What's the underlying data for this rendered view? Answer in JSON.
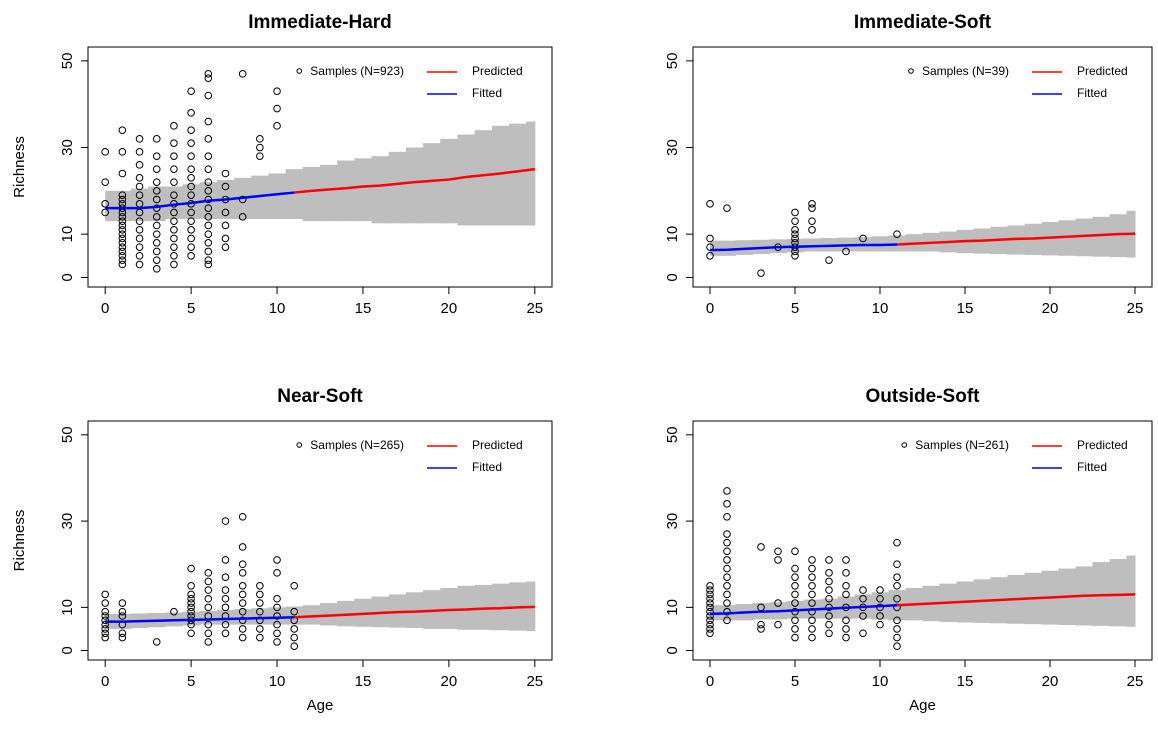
{
  "chart_data": [
    {
      "type": "scatter",
      "title": "Immediate-Hard",
      "ylabel": "Richness",
      "xlim": [
        -1,
        26
      ],
      "ylim": [
        -2.2,
        53.2
      ],
      "xticks": [
        0,
        5,
        10,
        15,
        20,
        25
      ],
      "yticks": [
        0,
        10,
        30,
        50
      ],
      "samples": {
        "name": "Samples (N=923)",
        "x": [
          0,
          1,
          2,
          3,
          4,
          5,
          6,
          7,
          8,
          9,
          10
        ],
        "y": [
          [
            15,
            17,
            22,
            29
          ],
          [
            3,
            4,
            5,
            6,
            7,
            8,
            9,
            10,
            11,
            12,
            13,
            14,
            15,
            16,
            17,
            18,
            19,
            24,
            29,
            34
          ],
          [
            3,
            5,
            7,
            9,
            11,
            13,
            15,
            17,
            19,
            21,
            23,
            26,
            29,
            32
          ],
          [
            2,
            4,
            6,
            8,
            10,
            12,
            14,
            16,
            18,
            20,
            22,
            25,
            28,
            32
          ],
          [
            3,
            5,
            7,
            9,
            11,
            13,
            15,
            17,
            19,
            22,
            25,
            28,
            31,
            35
          ],
          [
            5,
            7,
            9,
            11,
            13,
            15,
            17,
            19,
            21,
            23,
            25,
            28,
            31,
            34,
            38,
            43
          ],
          [
            3,
            4,
            6,
            8,
            10,
            12,
            14,
            16,
            18,
            20,
            22,
            25,
            28,
            32,
            36,
            42,
            46,
            47
          ],
          [
            7,
            9,
            12,
            15,
            18,
            21,
            24
          ],
          [
            14,
            18,
            47
          ],
          [
            28,
            30,
            32
          ],
          [
            35,
            39,
            43
          ]
        ]
      },
      "band": {
        "color": "#bebebe",
        "x": [
          0,
          1,
          2,
          3,
          4,
          5,
          6,
          7,
          8,
          9,
          10,
          11,
          12,
          13,
          14,
          15,
          16,
          17,
          18,
          19,
          20,
          21,
          22,
          23,
          24,
          25
        ],
        "lower": [
          13,
          13,
          13,
          13,
          13.5,
          13.5,
          13.5,
          13.5,
          13.5,
          13.5,
          13.5,
          13.5,
          13,
          13,
          13,
          13,
          12.5,
          12.5,
          12.5,
          12.5,
          12.5,
          12,
          12,
          12,
          12,
          12
        ],
        "upper": [
          20,
          20,
          20.5,
          21,
          21,
          21.5,
          22,
          22.5,
          23,
          23.5,
          24,
          25,
          25.5,
          26,
          27,
          27.5,
          28,
          29,
          30,
          31,
          32,
          33,
          34,
          35,
          35.5,
          36
        ]
      },
      "series": [
        {
          "name": "Predicted",
          "color": "#ff0000",
          "x": [
            11,
            12,
            13,
            14,
            15,
            16,
            17,
            18,
            19,
            20,
            21,
            22,
            23,
            24,
            25
          ],
          "values": [
            19.6,
            20,
            20.3,
            20.6,
            21,
            21.2,
            21.6,
            22,
            22.3,
            22.6,
            23.2,
            23.6,
            24,
            24.5,
            25
          ]
        },
        {
          "name": "Fitted",
          "color": "#0000ff",
          "x": [
            0,
            1,
            2,
            3,
            4,
            5,
            6,
            7,
            8,
            9,
            10,
            11
          ],
          "values": [
            16,
            16,
            16,
            16.3,
            16.8,
            17.2,
            17.7,
            18,
            18.4,
            18.8,
            19.2,
            19.6
          ]
        }
      ]
    },
    {
      "type": "scatter",
      "title": "Immediate-Soft",
      "xlim": [
        -1,
        26
      ],
      "ylim": [
        -2.2,
        53.2
      ],
      "xticks": [
        0,
        5,
        10,
        15,
        20,
        25
      ],
      "yticks": [
        0,
        10,
        30,
        50
      ],
      "samples": {
        "name": "Samples (N=39)",
        "x": [
          0,
          1,
          3,
          4,
          5,
          6,
          7,
          8,
          9,
          11
        ],
        "y": [
          [
            5,
            7,
            9,
            17
          ],
          [
            16
          ],
          [
            1
          ],
          [
            7
          ],
          [
            5,
            6,
            7,
            8,
            9,
            10,
            11,
            13,
            15
          ],
          [
            11,
            13,
            16,
            17
          ],
          [
            4
          ],
          [
            6
          ],
          [
            9
          ],
          [
            10
          ]
        ]
      },
      "band": {
        "color": "#bebebe",
        "x": [
          0,
          1,
          2,
          3,
          4,
          5,
          6,
          7,
          8,
          9,
          10,
          11,
          12,
          13,
          14,
          15,
          16,
          17,
          18,
          19,
          20,
          21,
          22,
          23,
          24,
          25
        ],
        "lower": [
          5,
          5,
          5.2,
          5.4,
          5.6,
          5.8,
          6,
          6,
          6,
          6,
          6,
          6,
          6,
          6,
          5.8,
          5.6,
          5.5,
          5.4,
          5.3,
          5.2,
          5.1,
          5,
          4.9,
          4.8,
          4.7,
          4.6
        ],
        "upper": [
          8.5,
          8.5,
          8.6,
          8.7,
          8.8,
          8.9,
          9,
          9.1,
          9.2,
          9.3,
          9.5,
          9.7,
          10,
          10.3,
          10.6,
          11,
          11.3,
          11.7,
          12,
          12.4,
          12.8,
          13.2,
          13.6,
          14,
          14.6,
          15.4
        ]
      },
      "series": [
        {
          "name": "Predicted",
          "color": "#ff0000",
          "x": [
            11,
            12,
            13,
            14,
            15,
            16,
            17,
            18,
            19,
            20,
            21,
            22,
            23,
            24,
            25
          ],
          "values": [
            7.6,
            7.8,
            8,
            8.2,
            8.4,
            8.5,
            8.7,
            8.9,
            9,
            9.2,
            9.4,
            9.6,
            9.8,
            10,
            10.1
          ]
        },
        {
          "name": "Fitted",
          "color": "#0000ff",
          "x": [
            0,
            1,
            2,
            3,
            4,
            5,
            6,
            7,
            8,
            9,
            10,
            11
          ],
          "values": [
            6.3,
            6.4,
            6.6,
            6.8,
            7,
            7.1,
            7.2,
            7.3,
            7.4,
            7.5,
            7.5,
            7.6
          ]
        }
      ]
    },
    {
      "type": "scatter",
      "title": "Near-Soft",
      "ylabel": "Richness",
      "xlabel": "Age",
      "xlim": [
        -1,
        26
      ],
      "ylim": [
        -2.2,
        53.2
      ],
      "xticks": [
        0,
        5,
        10,
        15,
        20,
        25
      ],
      "yticks": [
        0,
        10,
        30,
        50
      ],
      "samples": {
        "name": "Samples (N=265)",
        "x": [
          0,
          1,
          3,
          4,
          5,
          6,
          7,
          8,
          9,
          10,
          11
        ],
        "y": [
          [
            3,
            4,
            5,
            6,
            7,
            8,
            9,
            11,
            13
          ],
          [
            3,
            4,
            6,
            8,
            9,
            11
          ],
          [
            2
          ],
          [
            9
          ],
          [
            4,
            6,
            7,
            8,
            9,
            10,
            11,
            12,
            13,
            15,
            19
          ],
          [
            2,
            4,
            6,
            8,
            10,
            12,
            14,
            16,
            18
          ],
          [
            4,
            6,
            8,
            10,
            12,
            14,
            17,
            21,
            30
          ],
          [
            3,
            5,
            7,
            9,
            11,
            13,
            15,
            18,
            20,
            24,
            31
          ],
          [
            3,
            5,
            7,
            9,
            11,
            13,
            15
          ],
          [
            2,
            4,
            6,
            8,
            10,
            12,
            18,
            21
          ],
          [
            1,
            3,
            5,
            7,
            9,
            15
          ]
        ]
      },
      "band": {
        "color": "#bebebe",
        "x": [
          0,
          1,
          2,
          3,
          4,
          5,
          6,
          7,
          8,
          9,
          10,
          11,
          12,
          13,
          14,
          15,
          16,
          17,
          18,
          19,
          20,
          21,
          22,
          23,
          24,
          25
        ],
        "lower": [
          5,
          5,
          5.2,
          5.4,
          5.6,
          5.8,
          6,
          6,
          6,
          6,
          6,
          6,
          6,
          5.8,
          5.6,
          5.5,
          5.4,
          5.3,
          5.2,
          5,
          5,
          4.8,
          4.8,
          4.7,
          4.6,
          4.5
        ],
        "upper": [
          8.5,
          8.5,
          8.6,
          8.7,
          8.8,
          9,
          9.2,
          9.4,
          9.6,
          9.8,
          10,
          10.2,
          10.5,
          11,
          11.5,
          12,
          12.5,
          13,
          13.5,
          14,
          14.5,
          15,
          15.2,
          15.5,
          15.8,
          16
        ]
      },
      "series": [
        {
          "name": "Predicted",
          "color": "#ff0000",
          "x": [
            11,
            12,
            13,
            14,
            15,
            16,
            17,
            18,
            19,
            20,
            21,
            22,
            23,
            24,
            25
          ],
          "values": [
            7.7,
            7.9,
            8.1,
            8.3,
            8.5,
            8.7,
            8.9,
            9,
            9.2,
            9.4,
            9.5,
            9.7,
            9.8,
            10,
            10.1
          ]
        },
        {
          "name": "Fitted",
          "color": "#0000ff",
          "x": [
            0,
            1,
            2,
            3,
            4,
            5,
            6,
            7,
            8,
            9,
            10,
            11
          ],
          "values": [
            6.7,
            6.7,
            6.8,
            6.9,
            7,
            7.1,
            7.2,
            7.3,
            7.4,
            7.5,
            7.6,
            7.7
          ]
        }
      ]
    },
    {
      "type": "scatter",
      "title": "Outside-Soft",
      "xlabel": "Age",
      "xlim": [
        -1,
        26
      ],
      "ylim": [
        -2.2,
        53.2
      ],
      "xticks": [
        0,
        5,
        10,
        15,
        20,
        25
      ],
      "yticks": [
        0,
        10,
        30,
        50
      ],
      "samples": {
        "name": "Samples (N=261)",
        "x": [
          0,
          1,
          3,
          4,
          5,
          6,
          7,
          8,
          9,
          10,
          11
        ],
        "y": [
          [
            4,
            5,
            6,
            7,
            8,
            9,
            10,
            11,
            12,
            13,
            14,
            15
          ],
          [
            7,
            9,
            11,
            13,
            15,
            17,
            19,
            21,
            23,
            25,
            27,
            31,
            34,
            37
          ],
          [
            5,
            6,
            10,
            24
          ],
          [
            6,
            11,
            21,
            23
          ],
          [
            3,
            5,
            7,
            9,
            11,
            13,
            15,
            17,
            19,
            23
          ],
          [
            3,
            5,
            7,
            9,
            11,
            13,
            15,
            17,
            19,
            21
          ],
          [
            4,
            6,
            8,
            10,
            12,
            14,
            16,
            18,
            21
          ],
          [
            3,
            5,
            7,
            10,
            13,
            15,
            18,
            21
          ],
          [
            4,
            8,
            10,
            12,
            14
          ],
          [
            6,
            8,
            10,
            12,
            14
          ],
          [
            1,
            3,
            5,
            7,
            10,
            12,
            15,
            17,
            20,
            25
          ]
        ]
      },
      "band": {
        "color": "#bebebe",
        "x": [
          0,
          1,
          2,
          3,
          4,
          5,
          6,
          7,
          8,
          9,
          10,
          11,
          12,
          13,
          14,
          15,
          16,
          17,
          18,
          19,
          20,
          21,
          22,
          23,
          24,
          25
        ],
        "lower": [
          7,
          7,
          7,
          7.2,
          7.2,
          7.4,
          7.4,
          7.4,
          7.4,
          7.4,
          7.2,
          7,
          7,
          6.8,
          6.6,
          6.5,
          6.4,
          6.3,
          6.2,
          6.1,
          6,
          5.9,
          5.8,
          5.7,
          5.6,
          5.5
        ],
        "upper": [
          10.5,
          10.5,
          10.8,
          11,
          11.2,
          11.5,
          11.8,
          12,
          12.5,
          13,
          13.5,
          14,
          14.5,
          15,
          15.5,
          16,
          16.5,
          17,
          17.5,
          18,
          18.5,
          19,
          19.5,
          20.5,
          21.2,
          22
        ]
      },
      "series": [
        {
          "name": "Predicted",
          "color": "#ff0000",
          "x": [
            11,
            12,
            13,
            14,
            15,
            16,
            17,
            18,
            19,
            20,
            21,
            22,
            23,
            24,
            25
          ],
          "values": [
            10.5,
            10.7,
            10.9,
            11.1,
            11.3,
            11.5,
            11.7,
            11.9,
            12.1,
            12.3,
            12.5,
            12.7,
            12.8,
            12.9,
            13
          ]
        },
        {
          "name": "Fitted",
          "color": "#0000ff",
          "x": [
            0,
            1,
            2,
            3,
            4,
            5,
            6,
            7,
            8,
            9,
            10,
            11
          ],
          "values": [
            8.5,
            8.6,
            8.8,
            9,
            9.1,
            9.3,
            9.5,
            9.7,
            9.9,
            10.1,
            10.3,
            10.5
          ]
        }
      ]
    }
  ]
}
